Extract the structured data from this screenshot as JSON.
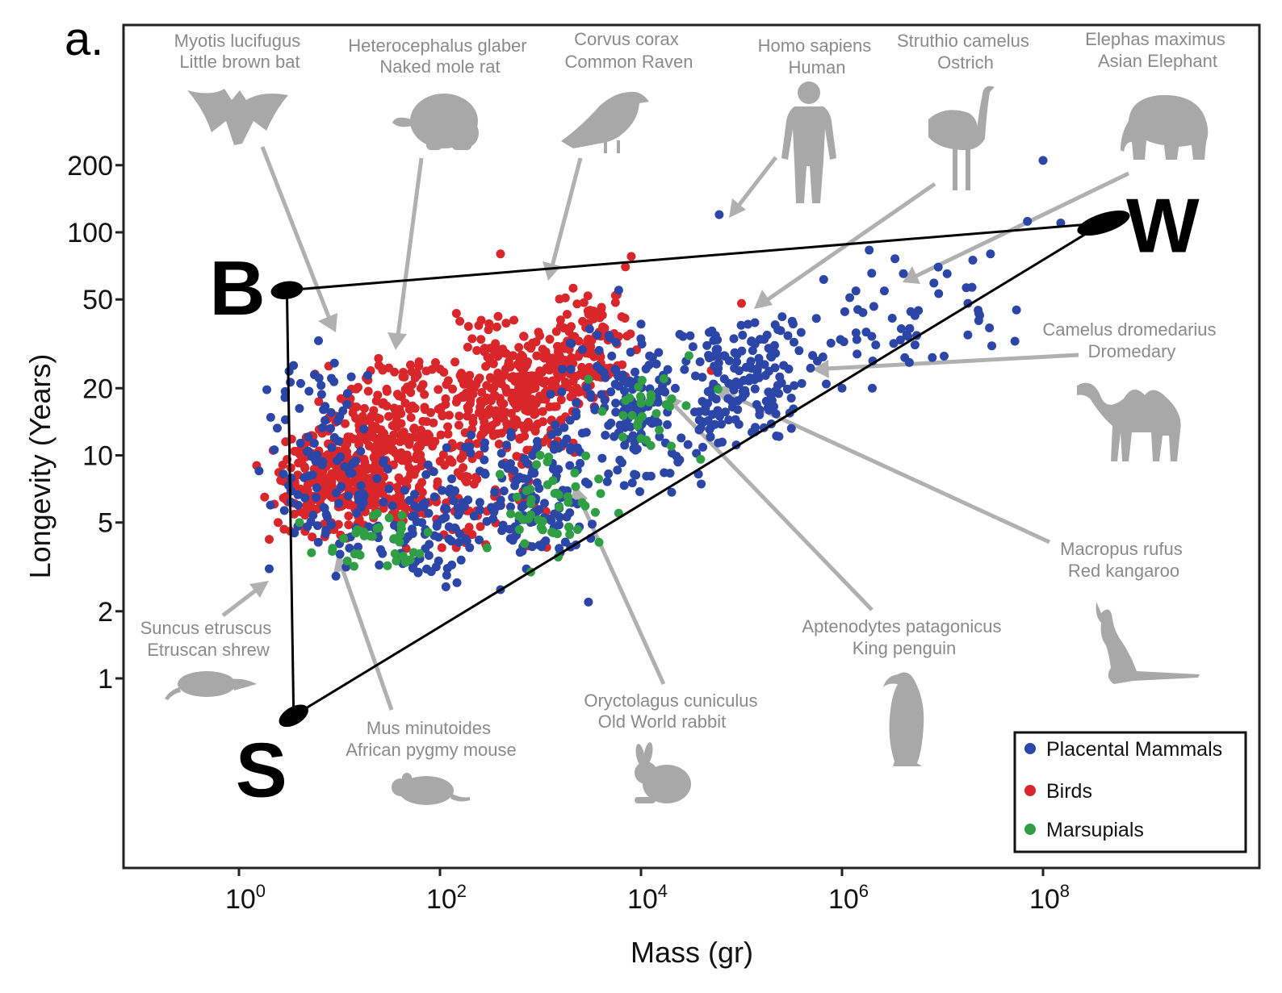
{
  "chart_data": {
    "type": "scatter",
    "panel_label": "a.",
    "xlabel": "Mass (gr)",
    "ylabel": "Longevity (Years)",
    "x_scale": "log10",
    "y_scale": "log10",
    "xlim": [
      0.005,
      20000000000
    ],
    "ylim": [
      0.12,
      600
    ],
    "x_ticks": [
      {
        "value": 1,
        "base": "10",
        "exp": "0"
      },
      {
        "value": 100,
        "base": "10",
        "exp": "2"
      },
      {
        "value": 10000,
        "base": "10",
        "exp": "4"
      },
      {
        "value": 1000000,
        "base": "10",
        "exp": "6"
      },
      {
        "value": 100000000,
        "base": "10",
        "exp": "8"
      }
    ],
    "y_ticks": [
      {
        "value": 1,
        "label": "1"
      },
      {
        "value": 2,
        "label": "2"
      },
      {
        "value": 5,
        "label": "5"
      },
      {
        "value": 10,
        "label": "10"
      },
      {
        "value": 20,
        "label": "20"
      },
      {
        "value": 50,
        "label": "50"
      },
      {
        "value": 100,
        "label": "100"
      },
      {
        "value": 200,
        "label": "200"
      }
    ],
    "grid": false,
    "legend_position": "bottom-right",
    "legend": [
      {
        "label": "Placental Mammals",
        "color": "#2b46a6"
      },
      {
        "label": "Birds",
        "color": "#d9262b"
      },
      {
        "label": "Marsupials",
        "color": "#2f9e44"
      }
    ],
    "triangle": {
      "vertices": [
        {
          "label": "B",
          "x": 3,
          "y": 55
        },
        {
          "label": "W",
          "x": 400000000,
          "y": 110
        },
        {
          "label": "S",
          "x": 3.5,
          "y": 0.68
        }
      ],
      "color": "#000000"
    },
    "series": [
      {
        "name": "Placental Mammals",
        "color": "#2b46a6",
        "clusters": [
          {
            "x": [
              1.5,
              30
            ],
            "y": [
              2.5,
              40
            ],
            "n": 110
          },
          {
            "x": [
              15,
              300
            ],
            "y": [
              2.2,
              10
            ],
            "n": 90
          },
          {
            "x": [
              100,
              5000
            ],
            "y": [
              3,
              15
            ],
            "n": 130
          },
          {
            "x": [
              1000,
              60000
            ],
            "y": [
              6,
              45
            ],
            "n": 170
          },
          {
            "x": [
              20000,
              800000
            ],
            "y": [
              10,
              50
            ],
            "n": 160
          },
          {
            "x": [
              300000,
              100000000
            ],
            "y": [
              20,
              90
            ],
            "n": 55
          }
        ],
        "points": [
          {
            "x": 2,
            "y": 3.1
          },
          {
            "x": 60000,
            "y": 120
          },
          {
            "x": 100000000,
            "y": 210
          },
          {
            "x": 70000000,
            "y": 112
          },
          {
            "x": 150000000,
            "y": 110
          },
          {
            "x": 3000,
            "y": 2.2
          },
          {
            "x": 400,
            "y": 2.5
          },
          {
            "x": 1000000,
            "y": 20
          },
          {
            "x": 2000000,
            "y": 20
          },
          {
            "x": 20000000,
            "y": 75
          },
          {
            "x": 30000000,
            "y": 80
          },
          {
            "x": 6000,
            "y": 55
          }
        ]
      },
      {
        "name": "Birds",
        "color": "#d9262b",
        "clusters": [
          {
            "x": [
              2,
              40
            ],
            "y": [
              4,
              14
            ],
            "n": 260
          },
          {
            "x": [
              5,
              300
            ],
            "y": [
              5,
              30
            ],
            "n": 300
          },
          {
            "x": [
              100,
              3000
            ],
            "y": [
              8,
              45
            ],
            "n": 300
          },
          {
            "x": [
              1000,
              10000
            ],
            "y": [
              15,
              60
            ],
            "n": 120
          },
          {
            "x": [
              20,
              2000
            ],
            "y": [
              3.5,
              9
            ],
            "n": 60
          }
        ],
        "points": [
          {
            "x": 1.8,
            "y": 6.5
          },
          {
            "x": 1.5,
            "y": 9
          },
          {
            "x": 2,
            "y": 4.2
          },
          {
            "x": 400,
            "y": 80
          },
          {
            "x": 8000,
            "y": 78
          },
          {
            "x": 7000,
            "y": 70
          },
          {
            "x": 100000,
            "y": 48
          },
          {
            "x": 50000,
            "y": 24
          }
        ]
      },
      {
        "name": "Marsupials",
        "color": "#2f9e44",
        "clusters": [
          {
            "x": [
              5,
              100
            ],
            "y": [
              3,
              6
            ],
            "n": 35
          },
          {
            "x": [
              200,
              8000
            ],
            "y": [
              3,
              12
            ],
            "n": 45
          },
          {
            "x": [
              2000,
              60000
            ],
            "y": [
              8,
              28
            ],
            "n": 30
          }
        ],
        "points": [
          {
            "x": 4,
            "y": 5
          },
          {
            "x": 30,
            "y": 3.2
          },
          {
            "x": 800,
            "y": 3
          },
          {
            "x": 1500,
            "y": 3.5
          },
          {
            "x": 6000,
            "y": 5.5
          },
          {
            "x": 20000,
            "y": 11
          },
          {
            "x": 30000,
            "y": 28
          }
        ]
      }
    ],
    "annotations": [
      {
        "line1": "Myotis lucifugus",
        "line2": "Little brown bat",
        "icon": "bat-icon"
      },
      {
        "line1": "Heterocephalus glaber",
        "line2": "Naked mole rat",
        "icon": "mole-rat-icon"
      },
      {
        "line1": "Corvus corax",
        "line2": "Common Raven",
        "icon": "raven-icon"
      },
      {
        "line1": "Homo sapiens",
        "line2": "Human",
        "icon": "human-icon"
      },
      {
        "line1": "Struthio camelus",
        "line2": "Ostrich",
        "icon": "ostrich-icon"
      },
      {
        "line1": "Elephas maximus",
        "line2": "Asian Elephant",
        "icon": "elephant-icon"
      },
      {
        "line1": "Camelus dromedarius",
        "line2": "Dromedary",
        "icon": "camel-icon"
      },
      {
        "line1": "Macropus rufus",
        "line2": "Red kangaroo",
        "icon": "kangaroo-icon"
      },
      {
        "line1": "Aptenodytes patagonicus",
        "line2": "King penguin",
        "icon": "penguin-icon"
      },
      {
        "line1": "Oryctolagus cuniculus",
        "line2": "Old World rabbit",
        "icon": "rabbit-icon"
      },
      {
        "line1": "Mus minutoides",
        "line2": "African pygmy mouse",
        "icon": "mouse-icon"
      },
      {
        "line1": "Suncus etruscus",
        "line2": "Etruscan shrew",
        "icon": "shrew-icon"
      }
    ]
  }
}
